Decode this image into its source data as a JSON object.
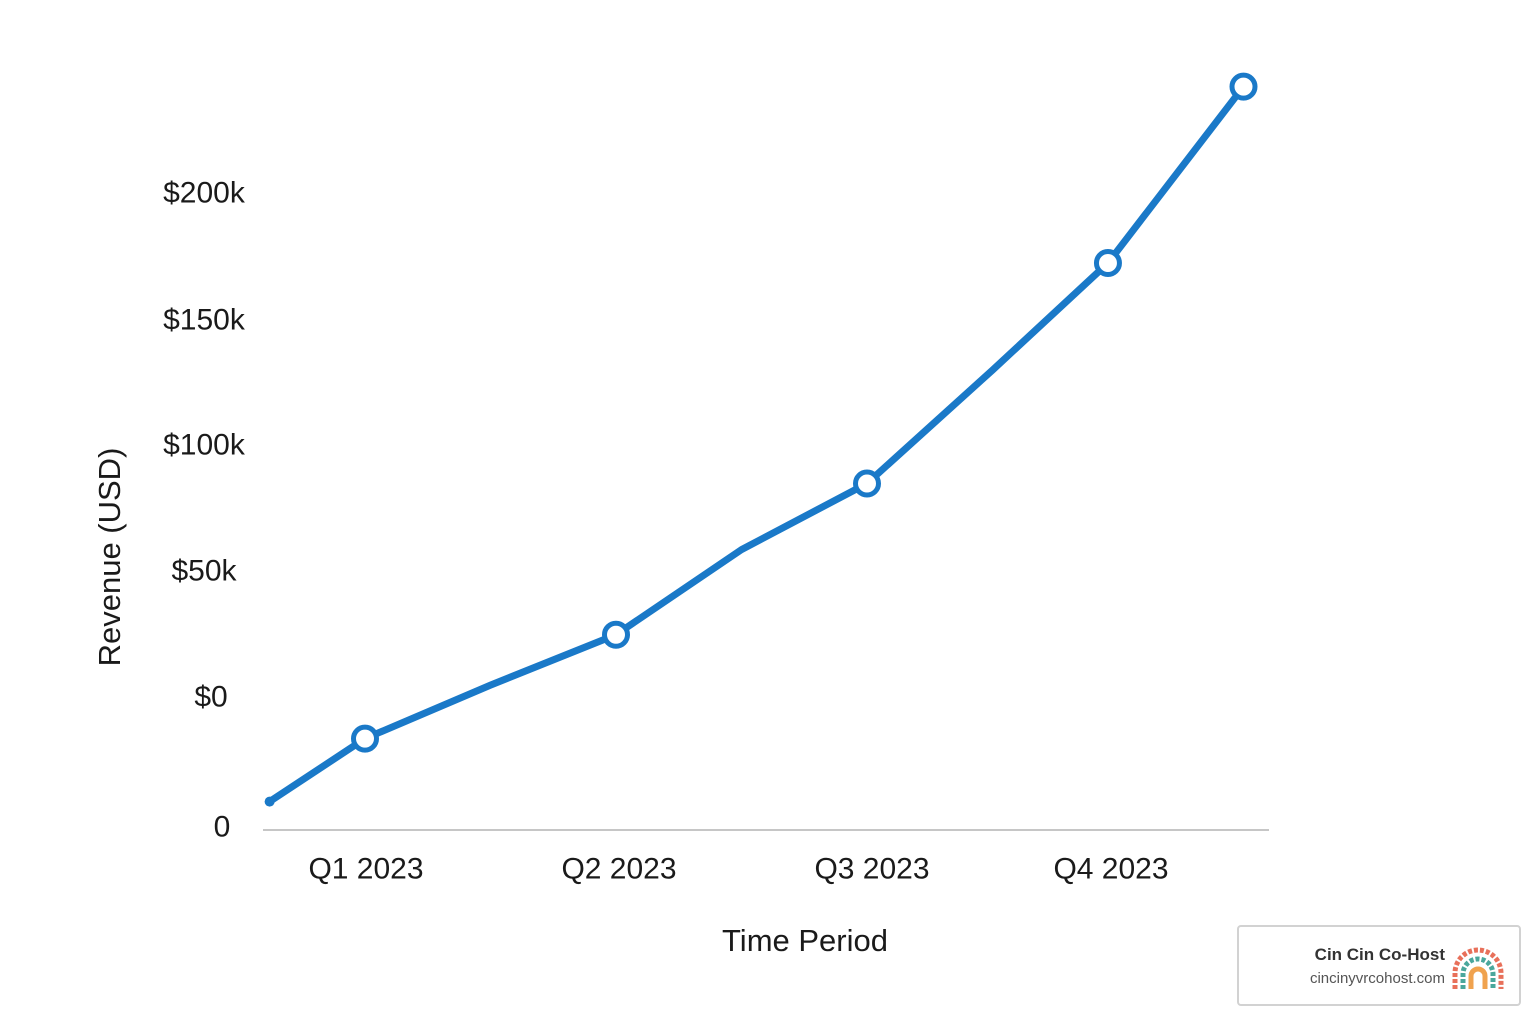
{
  "chart_data": {
    "type": "line",
    "title": "",
    "xlabel": "Time Period",
    "ylabel": "Revenue (USD)",
    "categories": [
      "Q1 2023",
      "Q2 2023",
      "Q3 2023",
      "Q4 2023"
    ],
    "y_tick_labels": [
      "0",
      "$0",
      "$50k",
      "$100k",
      "$150k",
      "$200k"
    ],
    "series": [
      {
        "color": "#1a79c8",
        "points": [
          {
            "x": 0.62,
            "y": 9000,
            "marker": false
          },
          {
            "x": 1.0,
            "y": 29000,
            "marker": true
          },
          {
            "x": 1.5,
            "y": 46000,
            "marker": false
          },
          {
            "x": 2.0,
            "y": 62000,
            "marker": true
          },
          {
            "x": 2.5,
            "y": 89000,
            "marker": false
          },
          {
            "x": 3.0,
            "y": 110000,
            "marker": true
          },
          {
            "x": 3.5,
            "y": 146000,
            "marker": false
          },
          {
            "x": 3.96,
            "y": 180000,
            "marker": true
          },
          {
            "x": 4.5,
            "y": 236000,
            "marker": true
          }
        ]
      }
    ],
    "grid": false,
    "legend": "none"
  },
  "badge": {
    "name": "Cin Cin Co-Host",
    "url": "cincinyvrcohost.com",
    "logo_icon": "rainbow-logo-icon"
  },
  "colors": {
    "line": "#1a79c8",
    "axis": "#c6c6c6",
    "text": "#1a1a1a"
  }
}
